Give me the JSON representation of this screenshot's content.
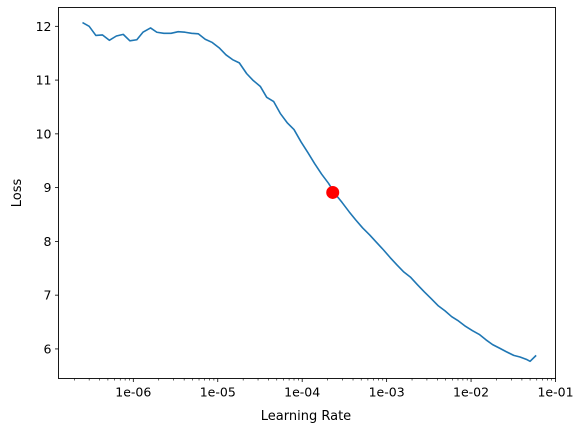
{
  "chart_data": {
    "type": "line",
    "xlabel": "Learning Rate",
    "ylabel": "Loss",
    "xscale": "log",
    "xlim": [
      1.3e-07,
      0.1
    ],
    "ylim": [
      5.45,
      12.35
    ],
    "grid": false,
    "x_ticks": [
      {
        "value": 1e-06,
        "label": "1e-06"
      },
      {
        "value": 1e-05,
        "label": "1e-05"
      },
      {
        "value": 0.0001,
        "label": "1e-04"
      },
      {
        "value": 0.001,
        "label": "1e-03"
      },
      {
        "value": 0.01,
        "label": "1e-02"
      },
      {
        "value": 0.1,
        "label": "1e-01"
      }
    ],
    "y_ticks": [
      {
        "value": 6,
        "label": "6"
      },
      {
        "value": 7,
        "label": "7"
      },
      {
        "value": 8,
        "label": "8"
      },
      {
        "value": 9,
        "label": "9"
      },
      {
        "value": 10,
        "label": "10"
      },
      {
        "value": 11,
        "label": "11"
      },
      {
        "value": 12,
        "label": "12"
      }
    ],
    "series": [
      {
        "color": "#1f77b4",
        "points": [
          [
            2.5e-07,
            12.07
          ],
          [
            3e-07,
            12.0
          ],
          [
            3.6e-07,
            11.83
          ],
          [
            4.3e-07,
            11.84
          ],
          [
            5.2e-07,
            11.74
          ],
          [
            6.3e-07,
            11.82
          ],
          [
            7.6e-07,
            11.85
          ],
          [
            9.1e-07,
            11.73
          ],
          [
            1.1e-06,
            11.75
          ],
          [
            1.3e-06,
            11.89
          ],
          [
            1.6e-06,
            11.97
          ],
          [
            1.9e-06,
            11.89
          ],
          [
            2.3e-06,
            11.87
          ],
          [
            2.8e-06,
            11.87
          ],
          [
            3.4e-06,
            11.9
          ],
          [
            4.1e-06,
            11.89
          ],
          [
            4.9e-06,
            11.87
          ],
          [
            5.9e-06,
            11.86
          ],
          [
            7.1e-06,
            11.76
          ],
          [
            8.6e-06,
            11.7
          ],
          [
            1.04e-05,
            11.6
          ],
          [
            1.25e-05,
            11.47
          ],
          [
            1.5e-05,
            11.38
          ],
          [
            1.8e-05,
            11.32
          ],
          [
            2.2e-05,
            11.12
          ],
          [
            2.6e-05,
            11.0
          ],
          [
            3.2e-05,
            10.88
          ],
          [
            3.8e-05,
            10.68
          ],
          [
            4.6e-05,
            10.6
          ],
          [
            5.5e-05,
            10.38
          ],
          [
            6.7e-05,
            10.2
          ],
          [
            8e-05,
            10.08
          ],
          [
            9.7e-05,
            9.85
          ],
          [
            0.000117,
            9.65
          ],
          [
            0.00014,
            9.45
          ],
          [
            0.00017,
            9.25
          ],
          [
            0.000205,
            9.08
          ],
          [
            0.000247,
            8.88
          ],
          [
            0.000298,
            8.72
          ],
          [
            0.00036,
            8.55
          ],
          [
            0.00043,
            8.4
          ],
          [
            0.00052,
            8.25
          ],
          [
            0.00063,
            8.12
          ],
          [
            0.00076,
            7.98
          ],
          [
            0.00092,
            7.84
          ],
          [
            0.0011,
            7.7
          ],
          [
            0.00133,
            7.56
          ],
          [
            0.0016,
            7.43
          ],
          [
            0.00193,
            7.33
          ],
          [
            0.0023,
            7.2
          ],
          [
            0.0028,
            7.06
          ],
          [
            0.0034,
            6.93
          ],
          [
            0.0041,
            6.8
          ],
          [
            0.0049,
            6.71
          ],
          [
            0.0059,
            6.6
          ],
          [
            0.0071,
            6.52
          ],
          [
            0.0086,
            6.42
          ],
          [
            0.0104,
            6.34
          ],
          [
            0.0125,
            6.27
          ],
          [
            0.015,
            6.17
          ],
          [
            0.018,
            6.08
          ],
          [
            0.022,
            6.01
          ],
          [
            0.026,
            5.95
          ],
          [
            0.032,
            5.88
          ],
          [
            0.038,
            5.85
          ],
          [
            0.046,
            5.8
          ],
          [
            0.05,
            5.77
          ],
          [
            0.059,
            5.88
          ]
        ]
      }
    ],
    "marker": {
      "x": 0.00023,
      "y": 8.91,
      "color": "#ff0000"
    }
  }
}
